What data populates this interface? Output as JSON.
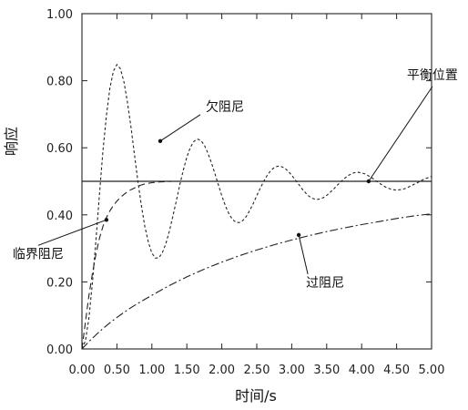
{
  "chart_data": {
    "type": "line",
    "title": "",
    "xlabel": "时间/s",
    "ylabel": "响应",
    "xlim": [
      0,
      5
    ],
    "ylim": [
      0,
      1
    ],
    "xticks": [
      "0.00",
      "0.50",
      "1.00",
      "1.50",
      "2.00",
      "2.50",
      "3.00",
      "3.50",
      "4.00",
      "4.50",
      "5.00"
    ],
    "yticks": [
      "0.00",
      "0.20",
      "0.40",
      "0.60",
      "0.80",
      "1.00"
    ],
    "grid": false,
    "legend": "none",
    "series": [
      {
        "name": "欠阻尼",
        "style": "short-dash",
        "x": [
          0,
          0.05,
          0.1,
          0.15,
          0.2,
          0.25,
          0.3,
          0.35,
          0.4,
          0.45,
          0.5,
          0.55,
          0.6,
          0.65,
          0.7,
          0.75,
          0.8,
          0.85,
          0.9,
          0.95,
          1.0,
          1.05,
          1.1,
          1.15,
          1.2,
          1.25,
          1.3,
          1.35,
          1.4,
          1.45,
          1.5,
          1.55,
          1.6,
          1.65,
          1.7,
          1.75,
          1.8,
          1.85,
          1.9,
          1.95,
          2.0,
          2.05,
          2.1,
          2.15,
          2.2,
          2.25,
          2.3,
          2.35,
          2.4,
          2.45,
          2.5,
          2.55,
          2.6,
          2.65,
          2.7,
          2.75,
          2.8,
          2.85,
          2.9,
          2.95,
          3.0,
          3.05,
          3.1,
          3.15,
          3.2,
          3.25,
          3.3,
          3.35,
          3.4,
          3.45,
          3.5,
          3.55,
          3.6,
          3.65,
          3.7,
          3.75,
          3.8,
          3.85,
          3.9,
          3.95,
          4.0,
          4.05,
          4.1,
          4.15,
          4.2,
          4.25,
          4.3,
          4.35,
          4.4,
          4.45,
          4.5,
          4.55,
          4.6,
          4.65,
          4.7,
          4.75,
          4.8,
          4.85,
          4.9,
          4.95,
          5.0
        ],
        "y": [
          0,
          0.024,
          0.093,
          0.198,
          0.325,
          0.46,
          0.589,
          0.697,
          0.778,
          0.829,
          0.848,
          0.836,
          0.797,
          0.737,
          0.663,
          0.581,
          0.501,
          0.427,
          0.365,
          0.318,
          0.286,
          0.271,
          0.272,
          0.287,
          0.314,
          0.351,
          0.395,
          0.442,
          0.49,
          0.534,
          0.572,
          0.601,
          0.619,
          0.626,
          0.622,
          0.608,
          0.585,
          0.556,
          0.524,
          0.49,
          0.457,
          0.428,
          0.404,
          0.387,
          0.378,
          0.377,
          0.383,
          0.395,
          0.413,
          0.434,
          0.457,
          0.479,
          0.5,
          0.518,
          0.532,
          0.541,
          0.545,
          0.544,
          0.539,
          0.53,
          0.518,
          0.505,
          0.491,
          0.477,
          0.465,
          0.455,
          0.449,
          0.446,
          0.447,
          0.451,
          0.458,
          0.467,
          0.477,
          0.488,
          0.498,
          0.508,
          0.516,
          0.522,
          0.526,
          0.527,
          0.525,
          0.522,
          0.516,
          0.51,
          0.502,
          0.495,
          0.488,
          0.482,
          0.478,
          0.475,
          0.474,
          0.475,
          0.477,
          0.481,
          0.486,
          0.491,
          0.496,
          0.502,
          0.507,
          0.511,
          0.514
        ]
      },
      {
        "name": "临界阻尼",
        "style": "long-dash",
        "x": [
          0,
          0.05,
          0.1,
          0.15,
          0.2,
          0.25,
          0.3,
          0.35,
          0.4,
          0.45,
          0.5,
          0.55,
          0.6,
          0.65,
          0.7,
          0.75,
          0.8,
          0.85,
          0.9,
          0.95,
          1.0,
          1.1,
          1.2,
          1.3,
          1.4,
          1.5
        ],
        "y": [
          0,
          0.08,
          0.16,
          0.225,
          0.283,
          0.33,
          0.365,
          0.392,
          0.412,
          0.428,
          0.441,
          0.452,
          0.461,
          0.469,
          0.475,
          0.48,
          0.485,
          0.489,
          0.492,
          0.494,
          0.496,
          0.498,
          0.499,
          0.5,
          0.5,
          0.5
        ]
      },
      {
        "name": "过阻尼",
        "style": "dash-dot",
        "x": [
          0,
          0.1,
          0.2,
          0.3,
          0.4,
          0.5,
          0.6,
          0.7,
          0.8,
          0.9,
          1.0,
          1.25,
          1.5,
          1.75,
          2.0,
          2.25,
          2.5,
          2.75,
          3.0,
          3.25,
          3.5,
          3.75,
          4.0,
          4.25,
          4.5,
          4.75,
          5.0
        ],
        "y": [
          0,
          0.022,
          0.042,
          0.061,
          0.078,
          0.094,
          0.109,
          0.123,
          0.136,
          0.148,
          0.16,
          0.189,
          0.215,
          0.238,
          0.259,
          0.278,
          0.295,
          0.311,
          0.325,
          0.338,
          0.35,
          0.361,
          0.371,
          0.38,
          0.389,
          0.397,
          0.403
        ]
      },
      {
        "name": "平衡位置",
        "style": "solid",
        "x": [
          0,
          5
        ],
        "y": [
          0.5,
          0.5
        ]
      }
    ],
    "annotations": [
      {
        "text": "平衡位置",
        "series": "平衡位置",
        "x": 4.1,
        "y": 0.5
      },
      {
        "text": "欠阻尼",
        "series": "欠阻尼",
        "x": 1.12,
        "y": 0.62
      },
      {
        "text": "临界阻尼",
        "series": "临界阻尼",
        "x": 0.35,
        "y": 0.385
      },
      {
        "text": "过阻尼",
        "series": "过阻尼",
        "x": 3.1,
        "y": 0.34
      }
    ]
  }
}
